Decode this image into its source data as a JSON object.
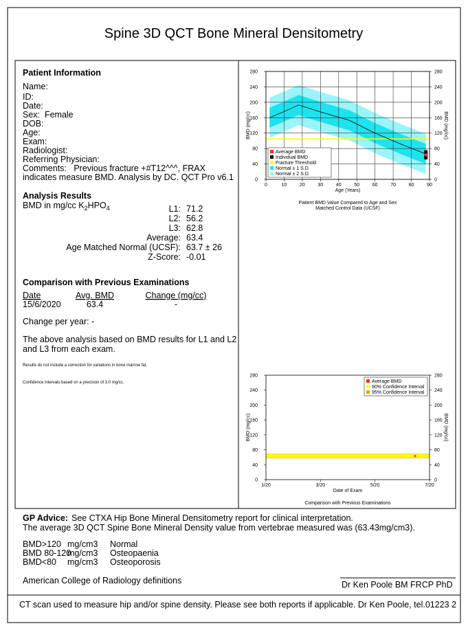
{
  "title": "Spine 3D QCT Bone Mineral Densitometry",
  "patient": {
    "heading": "Patient Information",
    "fields": [
      "Name:",
      "ID:",
      "Date:",
      "Sex:  Female",
      "DOB:",
      "Age:",
      "Exam:",
      "Radiologist:",
      "Referring Physician:"
    ],
    "comments": [
      "Comments:   Previous fracture +#T12^^^, FRAX",
      "indicates measure BMD. Analysis by DC. QCT Pro v6.1"
    ]
  },
  "analysis": {
    "heading": "Analysis Results",
    "unit": [
      "BMD in mg/cc K",
      "2",
      "HPO",
      "4"
    ],
    "rows": [
      [
        "L1:",
        "71.2"
      ],
      [
        "L2:",
        "56.2"
      ],
      [
        "L3:",
        "62.8"
      ],
      [
        "Average:",
        "63.4"
      ],
      [
        "Age Matched Normal (UCSF):",
        "63.7 ± 26"
      ],
      [
        "Z-Score:",
        "-0.01"
      ]
    ]
  },
  "comparison": {
    "heading": "Comparison with Previous Examinations",
    "columns": [
      "Date",
      "Avg. BMD",
      "Change (mg/cc)"
    ],
    "rows": [
      [
        "15/6/2020",
        "63.4",
        "-"
      ]
    ],
    "change_per_year": "Change per year: -",
    "note": [
      "The above analysis based on BMD results for L1 and L2",
      "and L3 from each exam."
    ],
    "footnotes": [
      "Results do not include a correction for variations in bone marrow fat.",
      "Confidence intervals based on a precision of 3.0 mg/cc."
    ]
  },
  "gp": {
    "label": "GP Advice:",
    "text": "See CTXA Hip Bone Mineral Densitometry report for clinical interpretation.",
    "line2": "The average 3D QCT Spine Bone Mineral Density value from vertebrae measured was (63.43mg/cm3).",
    "ranges": [
      [
        "BMD>120",
        "mg/cm3",
        "Normal"
      ],
      [
        "BMD 80-120",
        "mg/cm3",
        "Osteopaenia"
      ],
      [
        "BMD<80",
        "mg/cm3",
        "Osteoporosis"
      ]
    ],
    "source": "American College of Radiology definitions",
    "signature": "Dr Ken Poole BM FRCP PhD"
  },
  "footer": "CT scan used to measure hip and/or spine density. Please see both reports if applicable. Dr Ken Poole, tel.01223 2",
  "chart_data": [
    {
      "type": "line",
      "xlabel": "Age (Years)",
      "ylabel": "BMD (mg/cc)",
      "y2label": "BMD (mg/cc)",
      "caption": [
        "Patient BMD Value Compared to Age and Sex",
        "Matched Control Data (UCSF)"
      ],
      "xlim": [
        0,
        90
      ],
      "xticks": [
        0,
        10,
        20,
        30,
        40,
        50,
        60,
        70,
        80,
        90
      ],
      "ylim": [
        0,
        280
      ],
      "yticks": [
        0,
        40,
        80,
        120,
        160,
        200,
        240,
        280
      ],
      "y2lim": [
        0,
        280
      ],
      "y2ticks": [
        0,
        40,
        80,
        120,
        160,
        200,
        240,
        280
      ],
      "grid": true,
      "legend": "lower left",
      "x": [
        2,
        10,
        18,
        30,
        46,
        60,
        75,
        88
      ],
      "mean": {
        "color": "#000000",
        "values": [
          160,
          176,
          193,
          175,
          153,
          120,
          90,
          66
        ]
      },
      "bands": [
        {
          "name": "Normal ± 1 S.D.",
          "color": "#1ee3ee",
          "low": [
            134,
            150,
            167,
            149,
            127,
            94,
            64,
            40
          ],
          "high": [
            186,
            202,
            219,
            201,
            179,
            146,
            116,
            92
          ]
        },
        {
          "name": "Normal ± 2 S.D.",
          "color": "#9af5fa",
          "low": [
            108,
            124,
            141,
            123,
            101,
            68,
            38,
            14
          ],
          "high": [
            212,
            228,
            245,
            227,
            205,
            172,
            142,
            118
          ]
        }
      ],
      "threshold": {
        "name": "Fracture Threshold",
        "color": "#ffff00",
        "value": 105
      },
      "points": [
        {
          "name": "Average BMD",
          "color": "#ff2a2a",
          "marker": "circle",
          "x": [
            88
          ],
          "values": [
            63.4
          ]
        },
        {
          "name": "Individual BMD",
          "color": "#000000",
          "marker": "square",
          "x": [
            88,
            88,
            88
          ],
          "values": [
            71.2,
            56.2,
            62.8
          ]
        }
      ]
    },
    {
      "type": "band",
      "xlabel": "Date of Exam",
      "ylabel": "BMD (mg/cc)",
      "y2label": "BMD (mg/cc)",
      "caption": [
        "Comparison with Previous Examinations"
      ],
      "xlim": [
        1,
        7
      ],
      "xticks": [
        {
          "value": 1,
          "label": "1/20"
        },
        {
          "value": 3,
          "label": "3/20"
        },
        {
          "value": 5,
          "label": "5/20"
        },
        {
          "value": 7,
          "label": "7/20"
        }
      ],
      "ylim": [
        0,
        280
      ],
      "yticks": [
        0,
        40,
        80,
        120,
        160,
        200,
        240,
        280
      ],
      "y2lim": [
        0,
        280
      ],
      "y2ticks": [
        0,
        40,
        80,
        120,
        160,
        200,
        240,
        280
      ],
      "grid": false,
      "legend": "upper right",
      "bands": [
        {
          "name": "90% Confidence Interval",
          "color": "#ffff00",
          "low": 58.5,
          "high": 68.3
        },
        {
          "name": "95% Confidence Interval",
          "color": "#ff9900",
          "low": 57.5,
          "high": 69.3
        }
      ],
      "points": [
        {
          "name": "Average BMD",
          "color": "#ff2a2a",
          "marker": "circle",
          "x": [
            6.47
          ],
          "values": [
            63.4
          ]
        }
      ]
    }
  ]
}
